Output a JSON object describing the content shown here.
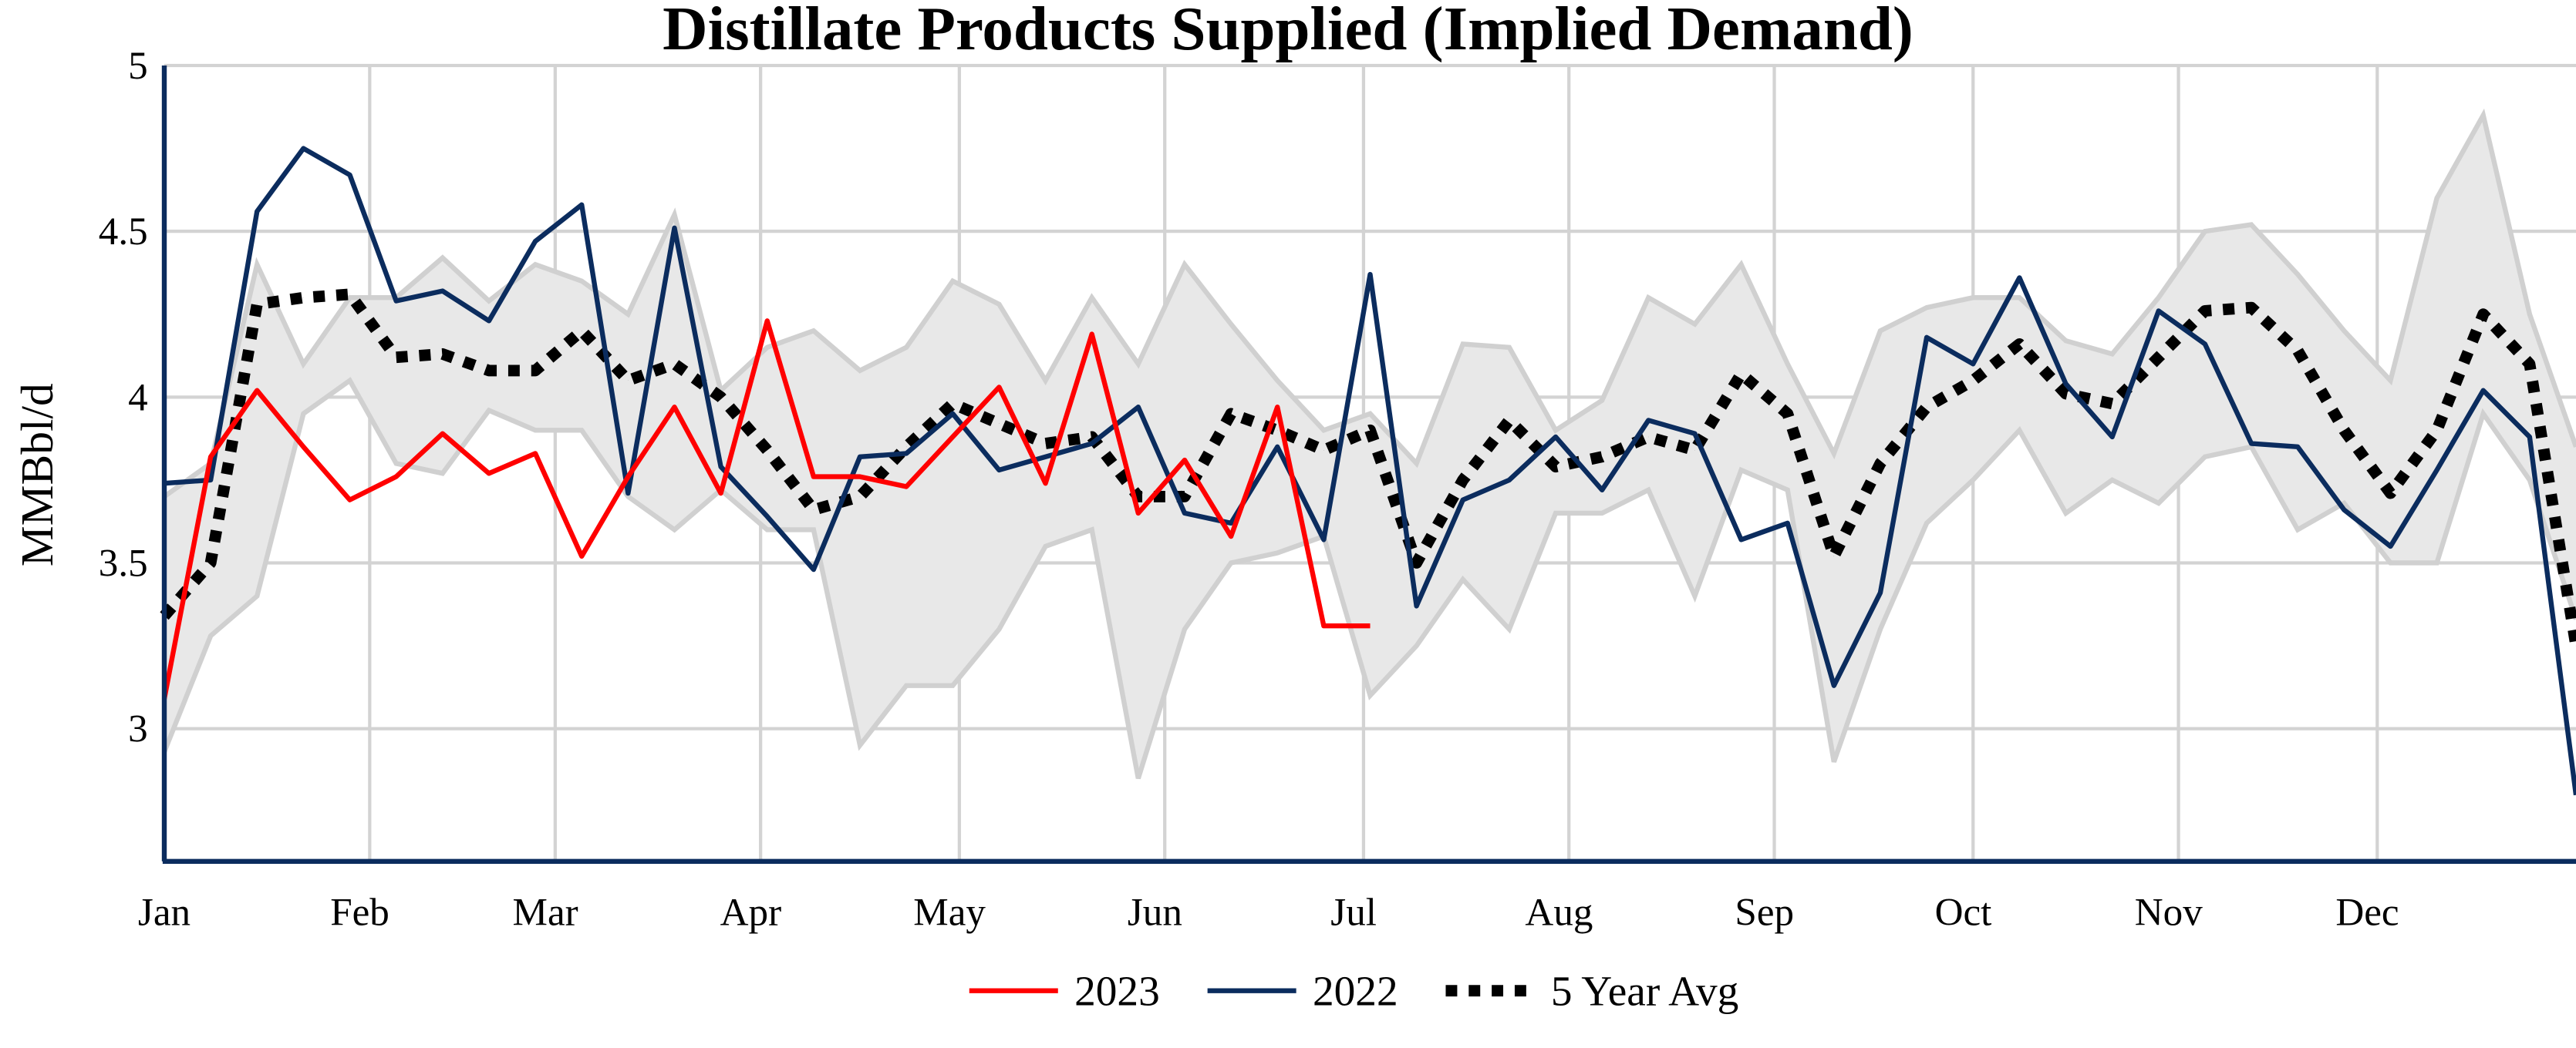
{
  "chart_data": {
    "type": "line",
    "title": "Distillate Products Supplied (Implied Demand)",
    "xlabel": "",
    "ylabel": "MMBbl/d",
    "ylim": [
      2.6,
      5
    ],
    "y_ticks": [
      "3",
      "3.5",
      "4",
      "4.5",
      "5"
    ],
    "x_ticks": [
      "Jan",
      "Feb",
      "Mar",
      "Apr",
      "May",
      "Jun",
      "Jul",
      "Aug",
      "Sep",
      "Oct",
      "Nov",
      "Dec"
    ],
    "x_unit": "week of year",
    "grid": true,
    "legend_position": "bottom",
    "series": [
      {
        "name": "2023",
        "color": "#ff0000",
        "style": "solid",
        "values": [
          3.09,
          3.82,
          4.02,
          3.85,
          3.69,
          3.76,
          3.89,
          3.77,
          3.83,
          3.52,
          3.76,
          3.97,
          3.71,
          4.23,
          3.76,
          3.76,
          3.73,
          3.88,
          4.03,
          3.74,
          4.19,
          3.65,
          3.81,
          3.58,
          3.97,
          3.31,
          3.31
        ]
      },
      {
        "name": "2022",
        "color": "#0b2c5e",
        "style": "solid",
        "values": [
          3.74,
          3.75,
          4.56,
          4.75,
          4.67,
          4.29,
          4.32,
          4.23,
          4.47,
          4.58,
          3.71,
          4.51,
          3.79,
          3.64,
          3.48,
          3.82,
          3.83,
          3.95,
          3.78,
          3.82,
          3.86,
          3.97,
          3.65,
          3.62,
          3.85,
          3.57,
          4.37,
          3.37,
          3.69,
          3.75,
          3.88,
          3.72,
          3.93,
          3.89,
          3.57,
          3.62,
          3.13,
          3.41,
          4.18,
          4.1,
          4.36,
          4.04,
          3.88,
          4.26,
          4.16,
          3.86,
          3.85,
          3.66,
          3.55,
          3.78,
          4.02,
          3.88,
          2.8
        ]
      },
      {
        "name": "5 Year Avg",
        "color": "#000000",
        "style": "dotted",
        "values": [
          3.34,
          3.5,
          4.28,
          4.3,
          4.31,
          4.12,
          4.13,
          4.08,
          4.08,
          4.2,
          4.05,
          4.1,
          4.0,
          3.84,
          3.66,
          3.7,
          3.85,
          3.98,
          3.92,
          3.86,
          3.88,
          3.7,
          3.7,
          3.95,
          3.9,
          3.84,
          3.9,
          3.5,
          3.75,
          3.93,
          3.79,
          3.82,
          3.88,
          3.84,
          4.07,
          3.95,
          3.52,
          3.8,
          3.97,
          4.05,
          4.16,
          4.01,
          3.98,
          4.12,
          4.26,
          4.27,
          4.14,
          3.9,
          3.71,
          3.9,
          4.25,
          4.1,
          3.25
        ]
      }
    ],
    "range_band": {
      "color": "#e8e8e8",
      "edge_color": "#d0d0d0",
      "upper": [
        3.7,
        3.8,
        4.4,
        4.1,
        4.3,
        4.3,
        4.42,
        4.29,
        4.4,
        4.35,
        4.25,
        4.55,
        4.02,
        4.15,
        4.2,
        4.08,
        4.15,
        4.35,
        4.28,
        4.05,
        4.3,
        4.1,
        4.4,
        4.22,
        4.05,
        3.9,
        3.95,
        3.8,
        4.16,
        4.15,
        3.9,
        3.99,
        4.3,
        4.22,
        4.4,
        4.1,
        3.83,
        4.2,
        4.27,
        4.3,
        4.3,
        4.17,
        4.13,
        4.3,
        4.5,
        4.52,
        4.37,
        4.2,
        4.05,
        4.6,
        4.85,
        4.25,
        3.85
      ],
      "lower": [
        2.93,
        3.28,
        3.4,
        3.95,
        4.05,
        3.8,
        3.77,
        3.96,
        3.9,
        3.9,
        3.7,
        3.6,
        3.72,
        3.6,
        3.6,
        2.95,
        3.13,
        3.13,
        3.3,
        3.55,
        3.6,
        2.85,
        3.3,
        3.5,
        3.53,
        3.58,
        3.1,
        3.25,
        3.45,
        3.3,
        3.65,
        3.65,
        3.72,
        3.4,
        3.78,
        3.72,
        2.9,
        3.3,
        3.62,
        3.75,
        3.9,
        3.65,
        3.75,
        3.68,
        3.82,
        3.85,
        3.6,
        3.68,
        3.5,
        3.5,
        3.95,
        3.75,
        3.33
      ]
    }
  }
}
